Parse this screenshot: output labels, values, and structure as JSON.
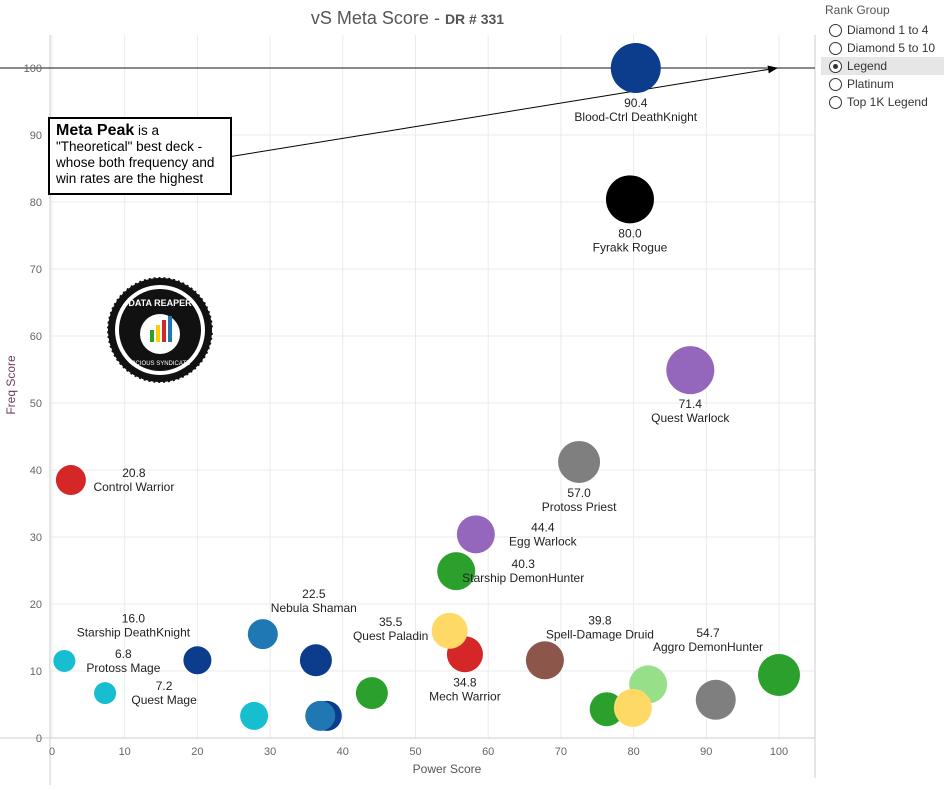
{
  "title": "vS Meta Score",
  "subtitle": "DR # 331",
  "legend": {
    "title": "Rank Group",
    "options": [
      "Diamond 1 to 4",
      "Diamond 5 to 10",
      "Legend",
      "Platinum",
      "Top 1K Legend"
    ],
    "selected": "Legend"
  },
  "annotation": {
    "bold": "Meta Peak",
    "text": " is a \"Theoretical\" best deck - whose both frequency and win rates are the highest"
  },
  "logo": {
    "text": "DATA REAPER REPORT",
    "subtext": "VICIOUS SYNDICATE PRESENTS"
  },
  "chart_data": {
    "type": "scatter",
    "xlabel": "Power Score",
    "ylabel": "Freq Score",
    "xlim": [
      -1,
      105
    ],
    "ylim": [
      -1,
      105
    ],
    "xticks": [
      0,
      10,
      20,
      30,
      40,
      50,
      60,
      70,
      80,
      90,
      100
    ],
    "yticks": [
      0,
      10,
      20,
      30,
      40,
      50,
      60,
      70,
      80,
      90,
      100
    ],
    "reference_line": {
      "y": 100
    },
    "points": [
      {
        "name": "Blood-Ctrl DeathKnight",
        "value": "90.4",
        "x": 80.3,
        "y": 100,
        "size": 25,
        "color": "#0b3d8c",
        "label": "below"
      },
      {
        "name": "Fyrakk Rogue",
        "value": "80.0",
        "x": 79.5,
        "y": 80.4,
        "size": 24,
        "color": "#000000",
        "label": "below"
      },
      {
        "name": "Quest Warlock",
        "value": "71.4",
        "x": 87.8,
        "y": 54.9,
        "size": 24,
        "color": "#9467bd",
        "label": "below"
      },
      {
        "name": "Protoss Priest",
        "value": "57.0",
        "x": 72.5,
        "y": 41.2,
        "size": 21,
        "color": "#7f7f7f",
        "label": "below"
      },
      {
        "name": "Control Warrior",
        "value": "20.8",
        "x": 2.6,
        "y": 38.5,
        "size": 15,
        "color": "#d62728",
        "label": "right"
      },
      {
        "name": "Egg Warlock",
        "value": "44.4",
        "x": 58.3,
        "y": 30.4,
        "size": 19,
        "color": "#9467bd",
        "label": "right"
      },
      {
        "name": "Starship DemonHunter",
        "value": "40.3",
        "x": 55.6,
        "y": 24.9,
        "size": 19,
        "color": "#2ca02c",
        "label": "right"
      },
      {
        "name": "Nebula Shaman",
        "value": "22.5",
        "x": 29,
        "y": 15.5,
        "size": 15,
        "color": "#1f77b4",
        "label": "above-right"
      },
      {
        "name": "Starship DeathKnight",
        "value": "16.0",
        "x": 20,
        "y": 11.6,
        "size": 14,
        "color": "#0b3d8c",
        "label": "above-left"
      },
      {
        "name": "Protoss Mage",
        "value": "6.8",
        "x": 1.7,
        "y": 11.5,
        "size": 11,
        "color": "#17becf",
        "label": "right"
      },
      {
        "name": "Quest Mage",
        "value": "7.2",
        "x": 7.3,
        "y": 6.7,
        "size": 11,
        "color": "#17becf",
        "label": "right"
      },
      {
        "name": "",
        "value": "",
        "x": 36.3,
        "y": 11.6,
        "size": 16,
        "color": "#0b3d8c",
        "label": "none"
      },
      {
        "name": "",
        "value": "",
        "x": 27.8,
        "y": 3.3,
        "size": 14,
        "color": "#17becf",
        "label": "none"
      },
      {
        "name": "",
        "value": "",
        "x": 37.8,
        "y": 3.3,
        "size": 15,
        "color": "#0b3d8c",
        "label": "none"
      },
      {
        "name": "",
        "value": "",
        "x": 36.9,
        "y": 3.3,
        "size": 15,
        "color": "#1f77b4",
        "label": "none"
      },
      {
        "name": "",
        "value": "",
        "x": 44,
        "y": 6.7,
        "size": 16,
        "color": "#2ca02c",
        "label": "none"
      },
      {
        "name": "Mech Warrior",
        "value": "34.8",
        "x": 56.8,
        "y": 12.5,
        "size": 18,
        "color": "#d62728",
        "label": "below"
      },
      {
        "name": "Quest Paladin",
        "value": "35.5",
        "x": 54.7,
        "y": 16,
        "size": 18,
        "color": "#ffd966",
        "label": "left"
      },
      {
        "name": "Spell-Damage Druid",
        "value": "39.8",
        "x": 67.8,
        "y": 11.6,
        "size": 19,
        "color": "#8c564b",
        "label": "above-right"
      },
      {
        "name": "",
        "value": "",
        "x": 82,
        "y": 8,
        "size": 19,
        "color": "#98df8a",
        "label": "none"
      },
      {
        "name": "",
        "value": "",
        "x": 76.3,
        "y": 4.3,
        "size": 17,
        "color": "#2ca02c",
        "label": "none"
      },
      {
        "name": "",
        "value": "",
        "x": 79.9,
        "y": 4.5,
        "size": 19,
        "color": "#ffd966",
        "label": "none"
      },
      {
        "name": "",
        "value": "",
        "x": 91.3,
        "y": 5.7,
        "size": 20,
        "color": "#7f7f7f",
        "label": "none"
      },
      {
        "name": "Aggro DemonHunter",
        "value": "54.7",
        "x": 100,
        "y": 9.4,
        "size": 21,
        "color": "#2ca02c",
        "label": "above-left"
      }
    ]
  }
}
